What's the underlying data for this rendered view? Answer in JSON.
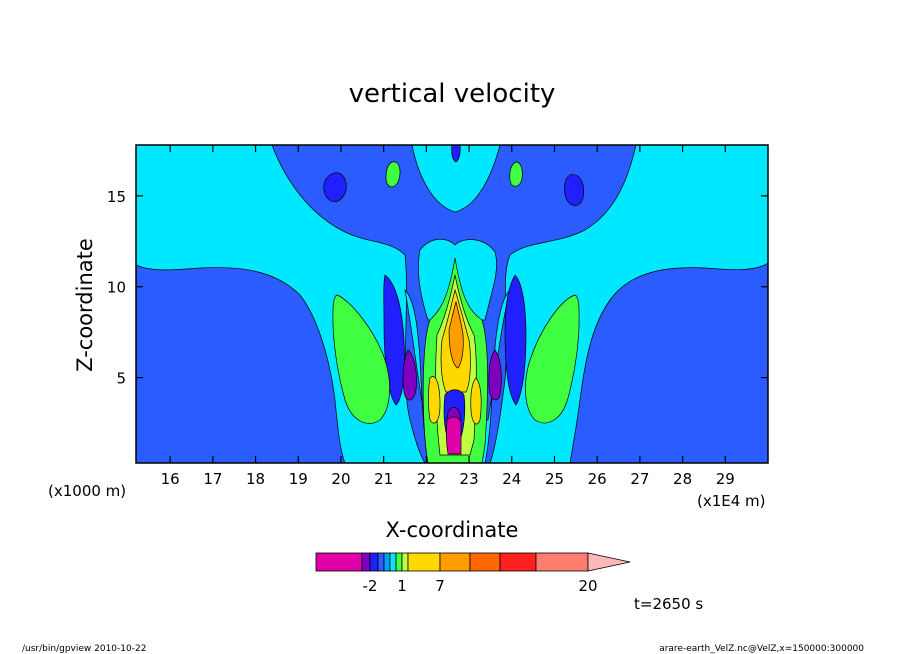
{
  "chart_data": {
    "type": "contour",
    "title": "vertical velocity",
    "xlabel": "X-coordinate",
    "ylabel": "Z-coordinate",
    "x_unit_note": "(x1E4 m)",
    "y_unit_note": "(x1000 m)",
    "xlim": [
      15.2,
      30.0
    ],
    "ylim": [
      0.3,
      17.8
    ],
    "x_ticks": [
      16,
      17,
      18,
      19,
      20,
      21,
      22,
      23,
      24,
      25,
      26,
      27,
      28,
      29
    ],
    "x_tick_labels": [
      "16",
      "17",
      "18",
      "19",
      "20",
      "21",
      "22",
      "23",
      "24",
      "25",
      "26",
      "27",
      "28",
      "29"
    ],
    "y_ticks": [
      5,
      10,
      15
    ],
    "y_tick_labels": [
      "5",
      "10",
      "15"
    ],
    "time_label": "t=2650 s",
    "colorbar": {
      "levels": [
        -10,
        -6,
        -2,
        -1,
        -0.5,
        0,
        0.5,
        1,
        3,
        7,
        10,
        13,
        17,
        20,
        25
      ],
      "colors": [
        "#e000a8",
        "#8000c0",
        "#2020ff",
        "#2a5cff",
        "#00a0ff",
        "#00e8ff",
        "#40ff40",
        "#c0ff40",
        "#ffd800",
        "#ff9c00",
        "#ff6800",
        "#ff2020",
        "#ff7e70",
        "#ffb8b8"
      ],
      "tick_labels": [
        "-2",
        "1",
        "7",
        "20"
      ],
      "tick_values": [
        -2,
        1,
        7,
        20
      ]
    }
  },
  "footer": {
    "left": "/usr/bin/gpview   2010-10-22",
    "right": "arare-earth_VelZ.nc@VelZ,x=150000:300000"
  }
}
